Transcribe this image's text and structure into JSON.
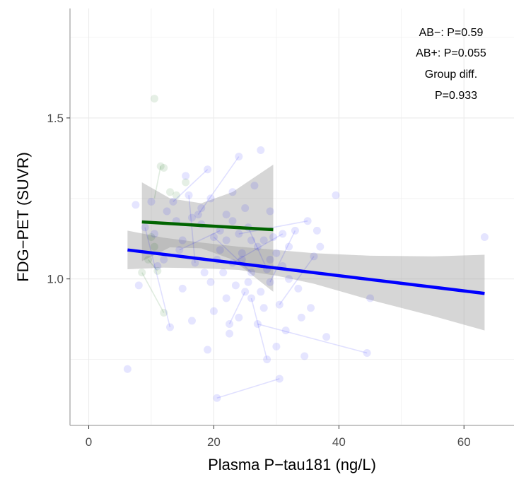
{
  "chart_data": {
    "type": "scatter",
    "title": "",
    "xlabel": "Plasma P−tau181 (ng/L)",
    "ylabel": "FDG−PET (SUVR)",
    "xlim": [
      -3,
      68
    ],
    "ylim": [
      0.545,
      1.84
    ],
    "xticks": [
      0,
      20,
      40,
      60
    ],
    "xtick_labels": [
      "0",
      "20",
      "40",
      "60"
    ],
    "yticks": [
      1.0,
      1.5
    ],
    "ytick_labels": [
      "1.0",
      "1.5"
    ],
    "grid": true,
    "legend": "none",
    "annotations": [
      "AB−: P=0.59",
      "AB+: P=0.055",
      "Group diff.",
      "P=0.933"
    ],
    "series": [
      {
        "color": "#006400",
        "points": [
          [
            10.5,
            1.56
          ],
          [
            11.5,
            1.35
          ],
          [
            12,
            1.345
          ],
          [
            13,
            1.27
          ],
          [
            14,
            1.26
          ],
          [
            15.5,
            1.3
          ],
          [
            11,
            1.025
          ],
          [
            12,
            0.895
          ],
          [
            8.5,
            1.02
          ],
          [
            9.5,
            1.06
          ],
          [
            10,
            1.13
          ],
          [
            10.5,
            1.1
          ]
        ],
        "links": [
          [
            [
              11.5,
              1.35
            ],
            [
              10.5,
              1.25
            ]
          ],
          [
            [
              8.5,
              1.02
            ],
            [
              12,
              0.895
            ]
          ],
          [
            [
              9.5,
              1.06
            ],
            [
              11,
              1.025
            ]
          ]
        ],
        "fit": {
          "x": [
            8.5,
            29.5
          ],
          "y": [
            1.177,
            1.153
          ]
        },
        "ci": {
          "x": [
            8.5,
            13,
            18,
            23,
            29.5
          ],
          "upper": [
            1.3,
            1.25,
            1.235,
            1.27,
            1.355
          ],
          "lower": [
            1.055,
            1.098,
            1.095,
            1.06,
            0.96
          ]
        }
      },
      {
        "color": "#0000ff",
        "points": [
          [
            6.2,
            0.72
          ],
          [
            7.5,
            1.23
          ],
          [
            8,
            0.98
          ],
          [
            9,
            1.16
          ],
          [
            10,
            1.24
          ],
          [
            10.5,
            1.14
          ],
          [
            11,
            1.04
          ],
          [
            12,
            1.06
          ],
          [
            12.5,
            1.21
          ],
          [
            13,
            0.85
          ],
          [
            13.5,
            1.24
          ],
          [
            14,
            1.18
          ],
          [
            14.5,
            1.09
          ],
          [
            15,
            1.12
          ],
          [
            15.5,
            1.32
          ],
          [
            16,
            1.26
          ],
          [
            16.5,
            1.19
          ],
          [
            16.5,
            0.87
          ],
          [
            17,
            1.05
          ],
          [
            17.5,
            1.2
          ],
          [
            18,
            1.17
          ],
          [
            18.5,
            1.02
          ],
          [
            19,
            1.34
          ],
          [
            19,
            0.78
          ],
          [
            19.5,
            1.25
          ],
          [
            20,
            1.13
          ],
          [
            20,
            0.9
          ],
          [
            20.5,
            1.06
          ],
          [
            20.5,
            0.63
          ],
          [
            21,
            1.15
          ],
          [
            21.5,
            1.02
          ],
          [
            22,
            1.12
          ],
          [
            22,
            0.94
          ],
          [
            22.5,
            0.86
          ],
          [
            22.5,
            0.83
          ],
          [
            23,
            1.27
          ],
          [
            23,
            1.05
          ],
          [
            23.5,
            0.98
          ],
          [
            24,
            1.38
          ],
          [
            24,
            1.14
          ],
          [
            24,
            0.88
          ],
          [
            24.5,
            1.08
          ],
          [
            25,
            1.22
          ],
          [
            25,
            0.96
          ],
          [
            25.5,
            1.16
          ],
          [
            26,
            1.02
          ],
          [
            26,
            0.94
          ],
          [
            26.5,
            1.29
          ],
          [
            27,
            1.1
          ],
          [
            27,
            0.86
          ],
          [
            27.5,
            1.4
          ],
          [
            28,
            0.91
          ],
          [
            28.5,
            1.03
          ],
          [
            28.5,
            0.75
          ],
          [
            29,
            1.21
          ],
          [
            29,
            0.99
          ],
          [
            29.5,
            1.13
          ],
          [
            30,
            1.08
          ],
          [
            30,
            0.79
          ],
          [
            30.5,
            0.92
          ],
          [
            30.5,
            0.69
          ],
          [
            31,
            1.14
          ],
          [
            31.5,
            0.84
          ],
          [
            32,
            1.0
          ],
          [
            32,
            1.1
          ],
          [
            33,
            1.15
          ],
          [
            34,
            0.88
          ],
          [
            34.5,
            0.76
          ],
          [
            35,
            1.18
          ],
          [
            35.5,
            0.91
          ],
          [
            36,
            1.07
          ],
          [
            36.5,
            1.15
          ],
          [
            37,
            1.1
          ],
          [
            38,
            0.82
          ],
          [
            39.5,
            1.26
          ],
          [
            44.5,
            0.77
          ],
          [
            45,
            0.94
          ],
          [
            63.3,
            1.13
          ],
          [
            21,
            1.09
          ],
          [
            23,
            1.18
          ],
          [
            26,
            1.12
          ],
          [
            28,
            1.12
          ],
          [
            18,
            1.22
          ],
          [
            15,
            0.97
          ],
          [
            25.5,
            0.99
          ],
          [
            27.5,
            0.96
          ],
          [
            29,
            1.06
          ],
          [
            31,
            1.04
          ],
          [
            33.5,
            0.97
          ],
          [
            24.5,
            1.06
          ],
          [
            22,
            1.2
          ],
          [
            19.5,
            0.99
          ]
        ],
        "links": [
          [
            [
              20.5,
              0.63
            ],
            [
              30.5,
              0.69
            ]
          ],
          [
            [
              27,
              0.86
            ],
            [
              44.5,
              0.77
            ]
          ],
          [
            [
              24,
              1.14
            ],
            [
              35,
              1.18
            ]
          ],
          [
            [
              26,
              0.94
            ],
            [
              28.5,
              0.75
            ]
          ],
          [
            [
              13.5,
              1.24
            ],
            [
              19,
              1.34
            ]
          ],
          [
            [
              14.5,
              1.09
            ],
            [
              21,
              1.15
            ]
          ],
          [
            [
              16,
              1.26
            ],
            [
              17,
              1.05
            ]
          ],
          [
            [
              20,
              1.13
            ],
            [
              26,
              1.02
            ]
          ],
          [
            [
              22.5,
              0.86
            ],
            [
              25,
              0.96
            ]
          ],
          [
            [
              29,
              0.99
            ],
            [
              33,
              1.15
            ]
          ],
          [
            [
              30.5,
              0.92
            ],
            [
              36,
              1.07
            ]
          ],
          [
            [
              17.5,
              1.2
            ],
            [
              24,
              1.38
            ]
          ],
          [
            [
              23,
              1.05
            ],
            [
              31,
              1.14
            ]
          ],
          [
            [
              9,
              1.16
            ],
            [
              13,
              0.85
            ]
          ],
          [
            [
              25.5,
              1.16
            ],
            [
              28.5,
              1.03
            ]
          ]
        ],
        "fit": {
          "x": [
            6.2,
            63.3
          ],
          "y": [
            1.09,
            0.955
          ]
        },
        "ci": {
          "x": [
            6.2,
            12,
            18,
            24,
            30,
            36,
            45,
            55,
            63.3
          ],
          "upper": [
            1.15,
            1.128,
            1.113,
            1.1,
            1.09,
            1.08,
            1.072,
            1.07,
            1.075
          ],
          "lower": [
            1.03,
            1.035,
            1.033,
            1.028,
            1.01,
            0.985,
            0.935,
            0.885,
            0.84
          ]
        }
      }
    ]
  }
}
